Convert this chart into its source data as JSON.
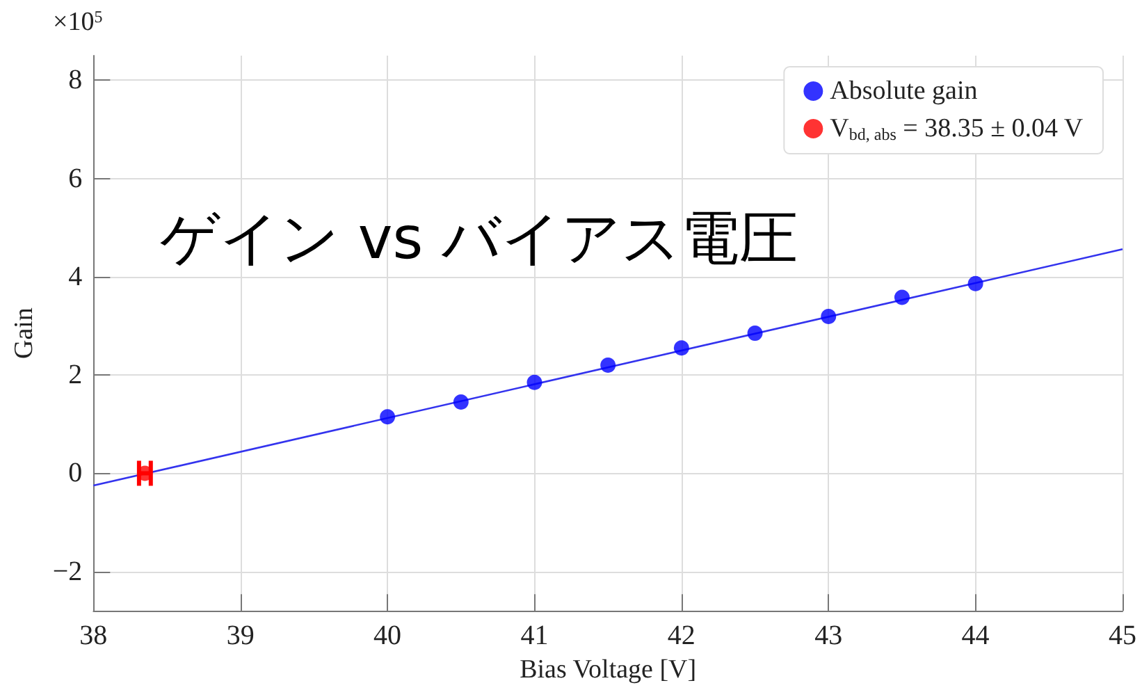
{
  "chart_data": {
    "type": "scatter",
    "title": "ゲイン vs バイアス電圧",
    "xlabel": "Bias Voltage [V]",
    "ylabel": "Gain",
    "annotations": [
      "×10$^{5}$"
    ],
    "xlim": [
      38,
      45
    ],
    "xticks": [
      38,
      39,
      40,
      41,
      42,
      43,
      44,
      45
    ],
    "ylim": [
      -2.8,
      8.5
    ],
    "yticks": [
      -2,
      0,
      2,
      4,
      6,
      8
    ],
    "grid": true,
    "legend": "top right",
    "marker": "circle",
    "series": [
      {
        "name": "Absolute gain",
        "color": "#0000ff",
        "x": [
          40,
          40.5,
          41,
          41.5,
          42,
          42.5,
          43,
          43.5,
          44
        ],
        "values": [
          1.15,
          1.45,
          1.85,
          2.2,
          2.55,
          2.85,
          3.19,
          3.58,
          3.86
        ]
      },
      {
        "name": "V$_{bd, abs}$ = 38.35 ± 0.04 V",
        "color": "#ff0000",
        "x": [
          38.35
        ],
        "values": [
          0
        ],
        "xerrors": [
          0.04
        ]
      },
      {
        "type": "line",
        "color": "#3333ee",
        "x": [
          38,
          45
        ],
        "values": [
          -0.25,
          4.56
        ],
        "marker": "none"
      }
    ]
  }
}
